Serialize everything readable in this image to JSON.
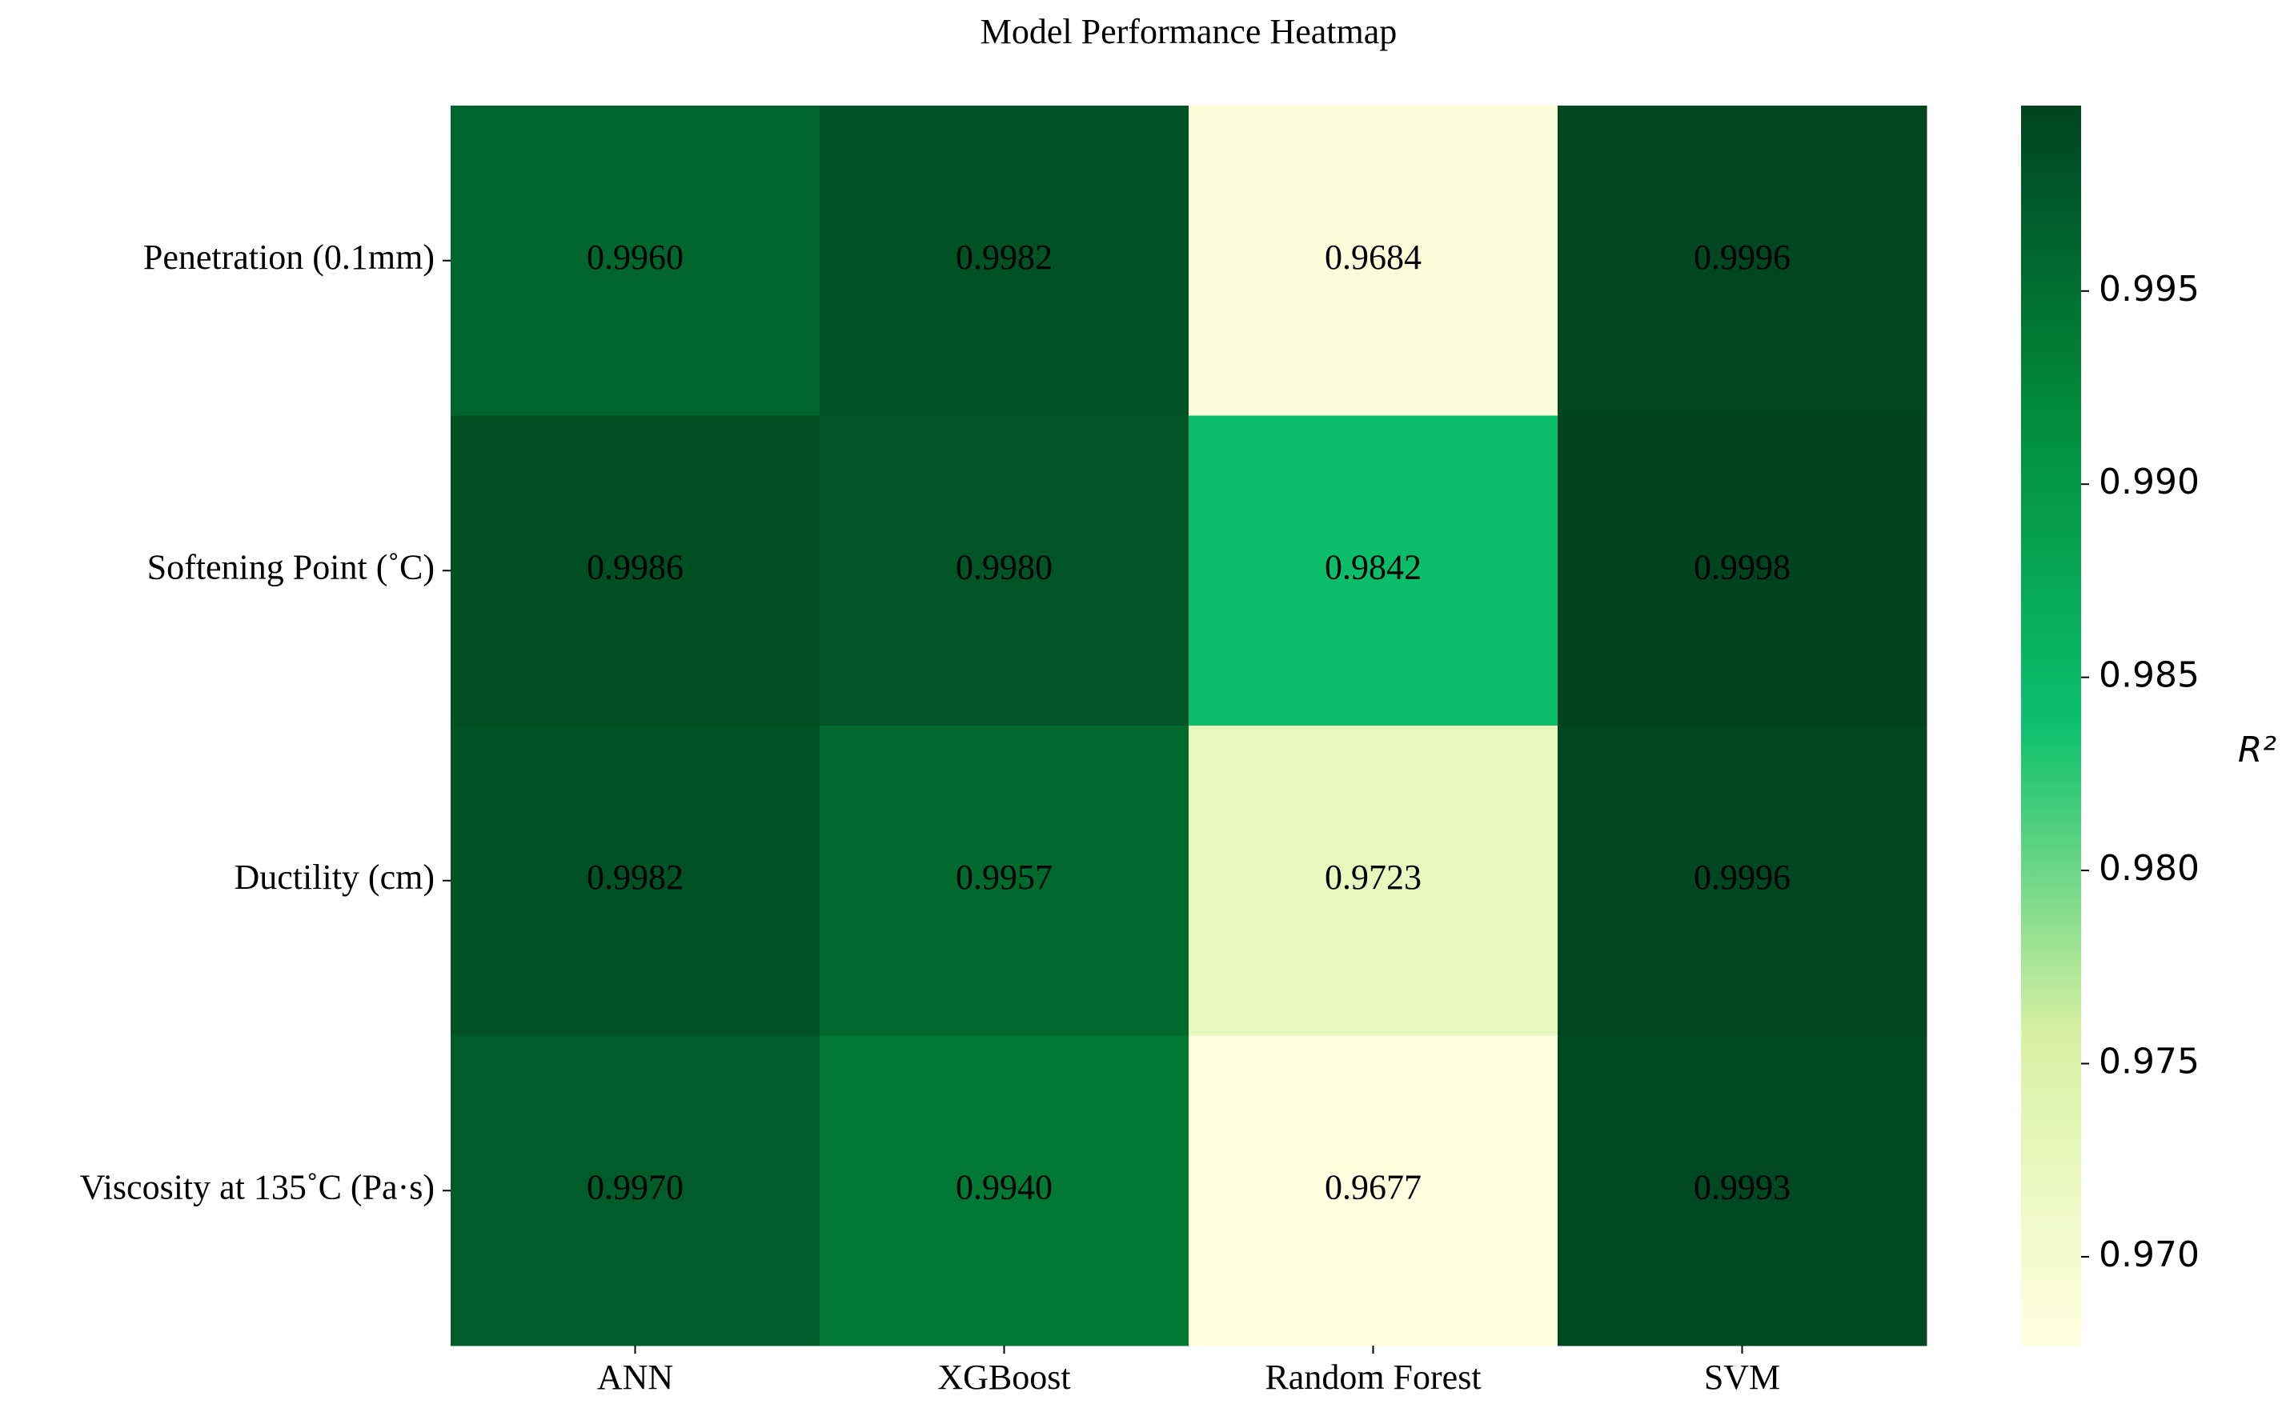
{
  "chart_data": {
    "type": "heatmap",
    "title": "Model Performance Heatmap",
    "x_categories": [
      "ANN",
      "XGBoost",
      "Random Forest",
      "SVM"
    ],
    "y_categories": [
      "Penetration (0.1mm)",
      "Softening Point (˚C)",
      "Ductility (cm)",
      "Viscosity at 135˚C (Pa·s)"
    ],
    "values": [
      [
        0.996,
        0.9982,
        0.9684,
        0.9996
      ],
      [
        0.9986,
        0.998,
        0.9842,
        0.9998
      ],
      [
        0.9982,
        0.9957,
        0.9723,
        0.9996
      ],
      [
        0.997,
        0.994,
        0.9677,
        0.9993
      ]
    ],
    "value_labels": [
      [
        "0.9960",
        "0.9982",
        "0.9684",
        "0.9996"
      ],
      [
        "0.9986",
        "0.9980",
        "0.9842",
        "0.9998"
      ],
      [
        "0.9982",
        "0.9957",
        "0.9723",
        "0.9996"
      ],
      [
        "0.9970",
        "0.9940",
        "0.9677",
        "0.9993"
      ]
    ],
    "colorbar_label": "R²",
    "clim": [
      0.9677,
      0.9998
    ],
    "cticks": [
      {
        "value": 0.97,
        "label": "0.970"
      },
      {
        "value": 0.975,
        "label": "0.975"
      },
      {
        "value": 0.98,
        "label": "0.980"
      },
      {
        "value": 0.985,
        "label": "0.985"
      },
      {
        "value": 0.99,
        "label": "0.990"
      },
      {
        "value": 0.995,
        "label": "0.995"
      }
    ],
    "colormap": [
      "#ffffe0",
      "#d9f0a3",
      "#0cc06c",
      "#018c3c",
      "#00441f"
    ]
  }
}
